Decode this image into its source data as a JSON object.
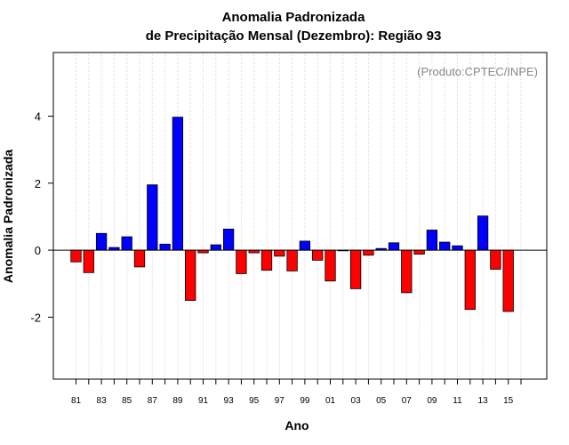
{
  "chart_data": {
    "type": "bar",
    "title": [
      "Anomalia Padronizada",
      "de Precipitação Mensal (Dezembro): Região 93"
    ],
    "xlabel": "Ano",
    "ylabel": "Anomalia Padronizada",
    "annotation": "(Produto:CPTEC/INPE)",
    "ylim": [
      -3.85,
      5.9
    ],
    "yticks": [
      -2,
      0,
      2,
      4
    ],
    "ytick_labels": [
      "-2",
      "0",
      "2",
      "4"
    ],
    "grid": "vertical-dotted",
    "categories": [
      "1981",
      "1982",
      "1983",
      "1984",
      "1985",
      "1986",
      "1987",
      "1988",
      "1989",
      "1990",
      "1991",
      "1992",
      "1993",
      "1994",
      "1995",
      "1996",
      "1997",
      "1998",
      "1999",
      "2000",
      "2001",
      "2002",
      "2003",
      "2004",
      "2005",
      "2006",
      "2007",
      "2008",
      "2009",
      "2010",
      "2011",
      "2012",
      "2013",
      "2014",
      "2015"
    ],
    "xtick_labels": [
      "81",
      "83",
      "85",
      "87",
      "89",
      "91",
      "93",
      "95",
      "97",
      "99",
      "01",
      "03",
      "05",
      "07",
      "09",
      "11",
      "13",
      "15"
    ],
    "values": [
      -0.35,
      -0.67,
      0.5,
      0.08,
      0.4,
      -0.5,
      1.95,
      0.18,
      3.97,
      -1.5,
      -0.08,
      0.16,
      0.63,
      -0.7,
      -0.08,
      -0.6,
      -0.18,
      -0.62,
      0.27,
      -0.3,
      -0.92,
      -0.02,
      -1.15,
      -0.15,
      0.05,
      0.22,
      -1.27,
      -0.12,
      0.6,
      0.24,
      0.13,
      -1.77,
      1.02,
      -0.57,
      -1.83
    ],
    "positive_color": "#0000ff",
    "negative_color": "#ff0000"
  }
}
